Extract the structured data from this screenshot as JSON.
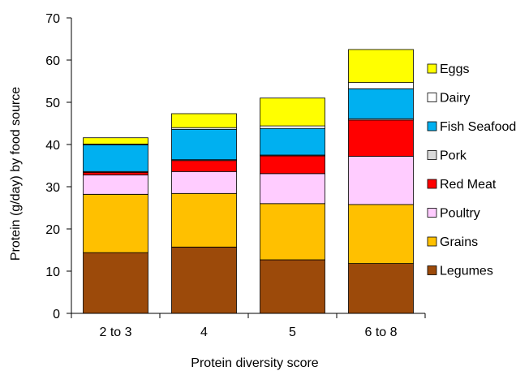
{
  "chart_data": {
    "type": "bar",
    "stacked": true,
    "categories": [
      "2 to 3",
      "4",
      "5",
      "6 to 8"
    ],
    "xlabel": "Protein diversity score",
    "ylabel": "Protein (g/day) by food source",
    "ylim": [
      0,
      70
    ],
    "yticks": [
      0,
      10,
      20,
      30,
      40,
      50,
      60,
      70
    ],
    "grid": false,
    "legend_position": "right",
    "series": [
      {
        "name": "Legumes",
        "color": "#9C4A0A",
        "values": [
          14.4,
          15.7,
          12.7,
          11.8
        ]
      },
      {
        "name": "Grains",
        "color": "#FFC000",
        "values": [
          13.8,
          12.7,
          13.3,
          14.0
        ]
      },
      {
        "name": "Poultry",
        "color": "#FFCCFF",
        "values": [
          4.6,
          5.2,
          7.1,
          11.4
        ]
      },
      {
        "name": "Red Meat",
        "color": "#FF0000",
        "values": [
          0.6,
          2.6,
          4.2,
          8.6
        ]
      },
      {
        "name": "Pork",
        "color": "#D9D9D9",
        "values": [
          0.2,
          0.2,
          0.2,
          0.3
        ]
      },
      {
        "name": "Fish Seafood",
        "color": "#00B0F0",
        "values": [
          6.3,
          7.2,
          6.3,
          7.1
        ]
      },
      {
        "name": "Dairy",
        "color": "#FFFFFF",
        "values": [
          0.2,
          0.4,
          0.6,
          1.5
        ]
      },
      {
        "name": "Eggs",
        "color": "#FFFF00",
        "values": [
          1.5,
          3.3,
          6.6,
          7.8
        ]
      }
    ]
  }
}
